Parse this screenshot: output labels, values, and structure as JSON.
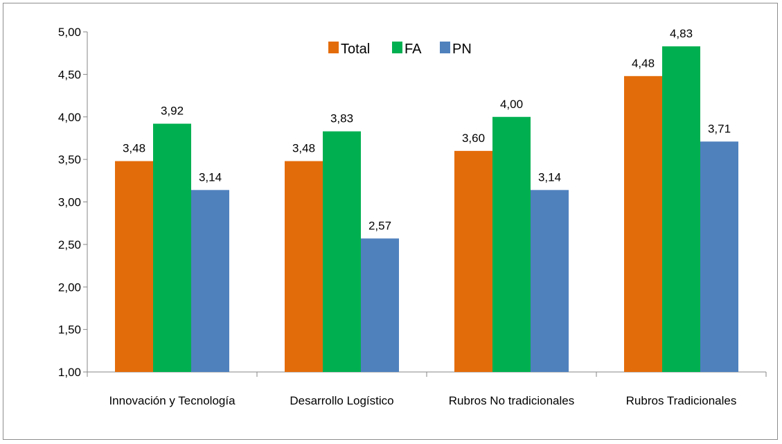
{
  "chart_data": {
    "type": "bar",
    "categories": [
      "Innovación y Tecnología",
      "Desarrollo Logístico",
      "Rubros No tradicionales",
      "Rubros Tradicionales"
    ],
    "series": [
      {
        "name": "Total",
        "values": [
          3.48,
          3.48,
          3.6,
          4.48
        ],
        "labels": [
          "3,48",
          "3,48",
          "3,60",
          "4,48"
        ],
        "color": "#e36c0a"
      },
      {
        "name": "FA",
        "values": [
          3.92,
          3.83,
          4.0,
          4.83
        ],
        "labels": [
          "3,92",
          "3,83",
          "4,00",
          "4,83"
        ],
        "color": "#00b050"
      },
      {
        "name": "PN",
        "values": [
          3.14,
          2.57,
          3.14,
          3.71
        ],
        "labels": [
          "3,14",
          "2,57",
          "3,14",
          "3,71"
        ],
        "color": "#4f81bd"
      }
    ],
    "ylim": [
      1,
      5
    ],
    "yticks": [
      1,
      1.5,
      2,
      2.5,
      3,
      3.5,
      4,
      4.5,
      5
    ],
    "ytick_labels": [
      "1,00",
      "1,50",
      "2,00",
      "2,50",
      "3,00",
      "3,50",
      "4,00",
      "4,50",
      "5,00"
    ],
    "grid": false,
    "legend_position": "top-center",
    "title": "",
    "xlabel": "",
    "ylabel": ""
  }
}
